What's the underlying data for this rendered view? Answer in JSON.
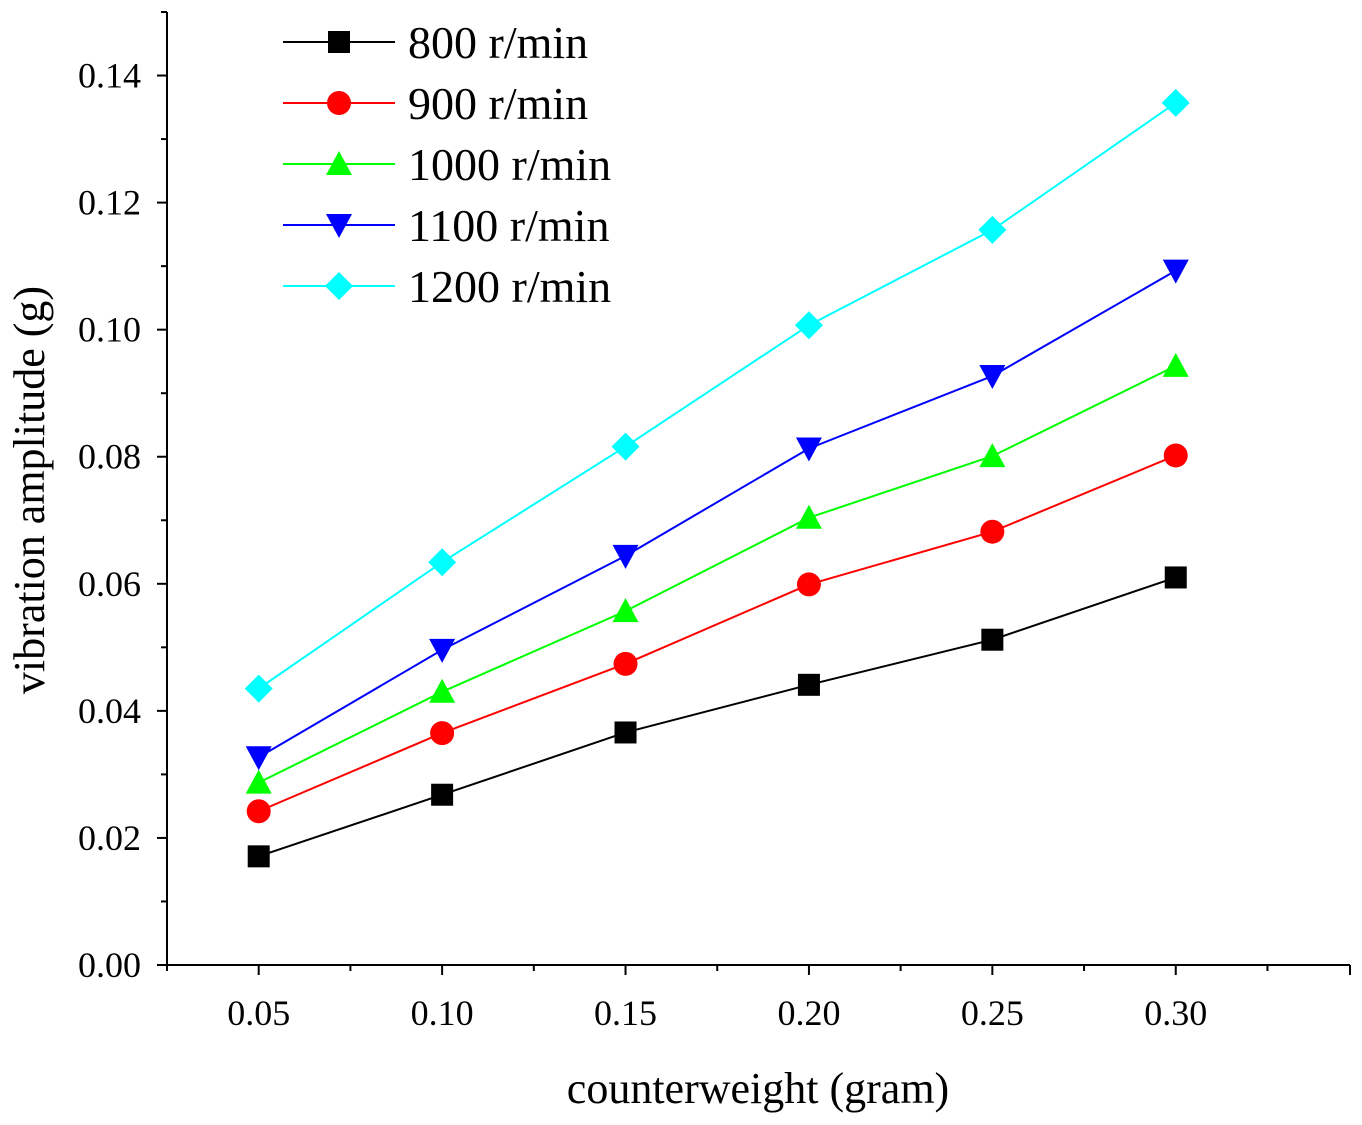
{
  "chart_data": {
    "type": "line",
    "title": "",
    "xlabel": "counterweight (gram)",
    "ylabel": "vibration amplitude (g)",
    "x": [
      0.05,
      0.1,
      0.15,
      0.2,
      0.25,
      0.3
    ],
    "xlim": [
      0.025,
      0.3475
    ],
    "ylim": [
      0.0,
      0.15
    ],
    "x_ticks": [
      "0.05",
      "0.10",
      "0.15",
      "0.20",
      "0.25",
      "0.30"
    ],
    "x_tick_values": [
      0.05,
      0.1,
      0.15,
      0.2,
      0.25,
      0.3
    ],
    "y_ticks": [
      "0.00",
      "0.02",
      "0.04",
      "0.06",
      "0.08",
      "0.10",
      "0.12",
      "0.14"
    ],
    "y_tick_values": [
      0.0,
      0.02,
      0.04,
      0.06,
      0.08,
      0.1,
      0.12,
      0.14
    ],
    "grid": false,
    "legend_position": "top-left",
    "series": [
      {
        "name": "800 r/min",
        "color": "#000000",
        "marker": "square",
        "values": [
          0.0171,
          0.0268,
          0.0366,
          0.0441,
          0.0512,
          0.061
        ]
      },
      {
        "name": "900 r/min",
        "color": "#ff0000",
        "marker": "circle",
        "values": [
          0.0242,
          0.0365,
          0.0474,
          0.0599,
          0.0682,
          0.0802
        ]
      },
      {
        "name": "1000 r/min",
        "color": "#00ff00",
        "marker": "triangle-up",
        "values": [
          0.0287,
          0.043,
          0.0557,
          0.0704,
          0.0801,
          0.0943
        ]
      },
      {
        "name": "1100 r/min",
        "color": "#0000ff",
        "marker": "triangle-down",
        "values": [
          0.0327,
          0.0496,
          0.0644,
          0.0813,
          0.0927,
          0.1093
        ]
      },
      {
        "name": "1200 r/min",
        "color": "#00ffff",
        "marker": "diamond",
        "values": [
          0.0435,
          0.0634,
          0.0816,
          0.1007,
          0.1157,
          0.1357
        ]
      }
    ]
  }
}
